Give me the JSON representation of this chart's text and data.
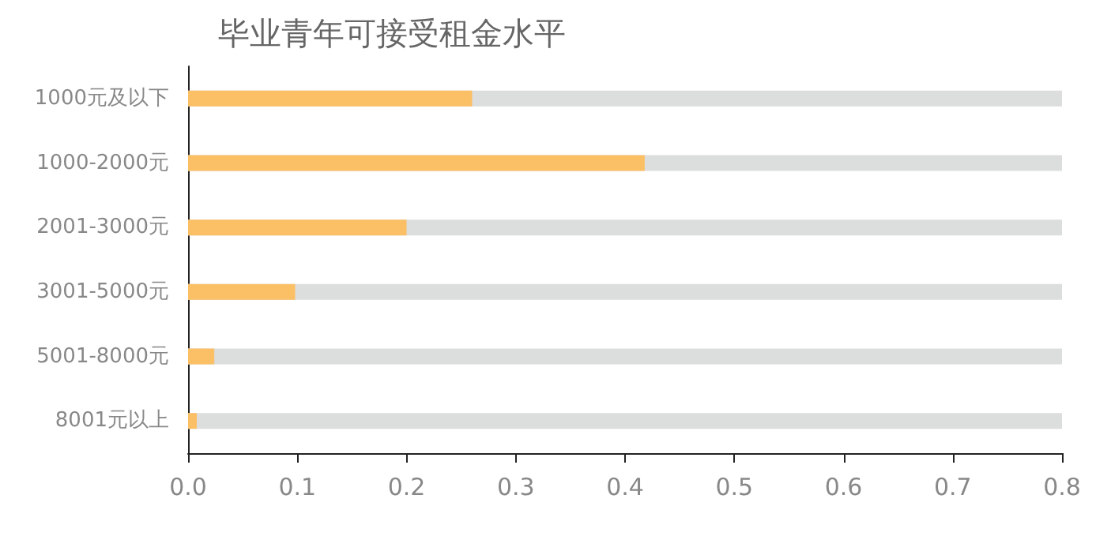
{
  "chart_data": {
    "type": "bar",
    "orientation": "horizontal",
    "title": "毕业青年可接受租金水平",
    "categories": [
      "1000元及以下",
      "1000-2000元",
      "2001-3000元",
      "3001-5000元",
      "5001-8000元",
      "8001元以上"
    ],
    "values": [
      0.26,
      0.418,
      0.2,
      0.098,
      0.024,
      0.008
    ],
    "color": "#fbbf66",
    "xlim": [
      0,
      0.8
    ],
    "xticks": [
      {
        "value": 0,
        "label": "0.0"
      },
      0.1,
      0.2,
      0.3,
      0.4,
      0.5,
      0.6,
      0.7,
      0.8
    ],
    "grid": false
  }
}
